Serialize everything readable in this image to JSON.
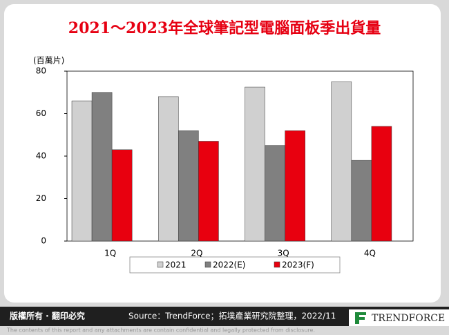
{
  "chart_data": {
    "type": "bar",
    "title": "2021～2023年全球筆記型電腦面板季出貨量",
    "y_label": "(百萬片)",
    "categories": [
      "1Q",
      "2Q",
      "3Q",
      "4Q"
    ],
    "series": [
      {
        "name": "2021",
        "color": "#d0d0d0",
        "values": [
          66,
          68,
          72.5,
          75
        ]
      },
      {
        "name": "2022(E)",
        "color": "#808080",
        "values": [
          70,
          52,
          45,
          38
        ]
      },
      {
        "name": "2023(F)",
        "color": "#e8000f",
        "values": [
          43,
          47,
          52,
          54
        ]
      }
    ],
    "ylim": [
      0,
      80
    ],
    "yticks": [
      0,
      20,
      40,
      60,
      80
    ],
    "grid": false
  },
  "footer": {
    "rights": "版權所有 · 翻印必究",
    "source": "Source：TrendForce；拓墣產業研究院整理，2022/11",
    "logo": "TRENDFORCE",
    "disclaimer": "The contents of this report and any attachments are contain confidential and legally protected from disclosure."
  }
}
